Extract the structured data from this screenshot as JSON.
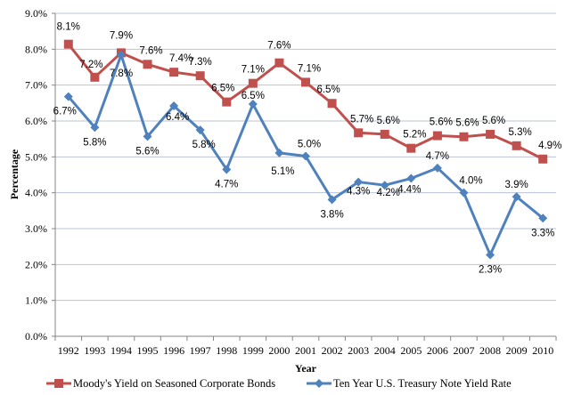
{
  "chart_data": {
    "type": "line",
    "title": "",
    "xlabel": "Year",
    "ylabel": "Percentage",
    "ylim": [
      0,
      9
    ],
    "y_ticks": [
      "0.0%",
      "1.0%",
      "2.0%",
      "3.0%",
      "4.0%",
      "5.0%",
      "6.0%",
      "7.0%",
      "8.0%",
      "9.0%"
    ],
    "grid": true,
    "legend_position": "bottom",
    "categories": [
      "1992",
      "1993",
      "1994",
      "1995",
      "1996",
      "1997",
      "1998",
      "1999",
      "2000",
      "2001",
      "2002",
      "2003",
      "2004",
      "2005",
      "2006",
      "2007",
      "2008",
      "2009",
      "2010"
    ],
    "series": [
      {
        "name": "Moody's Yield on Seasoned Corporate Bonds",
        "color": "#c0504d",
        "marker": "square",
        "values": [
          8.14,
          7.22,
          7.9,
          7.58,
          7.36,
          7.26,
          6.53,
          7.05,
          7.62,
          7.08,
          6.49,
          5.67,
          5.63,
          5.24,
          5.59,
          5.56,
          5.63,
          5.31,
          4.94
        ],
        "labels": [
          "8.1%",
          "7.2%",
          "7.9%",
          "7.6%",
          "7.4%",
          "7.3%",
          "6.5%",
          "7.1%",
          "7.6%",
          "7.1%",
          "6.5%",
          "5.7%",
          "5.6%",
          "5.2%",
          "5.6%",
          "5.6%",
          "5.6%",
          "5.3%",
          "4.9%"
        ]
      },
      {
        "name": "Ten Year U.S. Treasury Note Yield Rate",
        "color": "#4f81bd",
        "marker": "diamond",
        "values": [
          6.68,
          5.82,
          7.84,
          5.57,
          6.42,
          5.75,
          4.65,
          6.47,
          5.11,
          5.02,
          3.81,
          4.3,
          4.21,
          4.4,
          4.69,
          4.0,
          2.27,
          3.89,
          3.29
        ],
        "labels": [
          "6.7%",
          "5.8%",
          "7.8%",
          "5.6%",
          "6.4%",
          "5.8%",
          "4.7%",
          "6.5%",
          "5.1%",
          "5.0%",
          "3.8%",
          "4.3%",
          "4.2%",
          "4.4%",
          "4.7%",
          "4.0%",
          "2.3%",
          "3.9%",
          "3.3%"
        ]
      }
    ]
  }
}
